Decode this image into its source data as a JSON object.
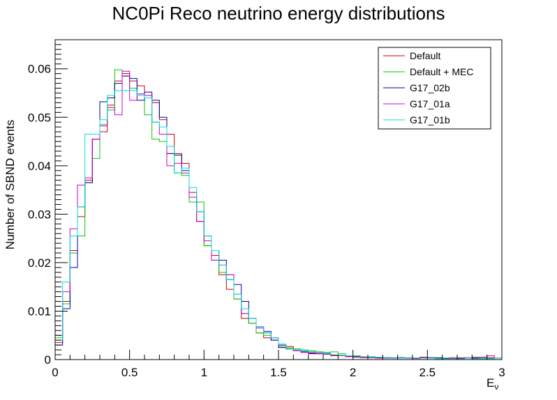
{
  "chart_data": {
    "type": "line",
    "title": "NC0Pi Reco neutrino energy distributions",
    "xlabel": "E",
    "xlabel_sub": "ν",
    "ylabel": "Number of SBND events",
    "xlim": [
      0,
      3
    ],
    "ylim": [
      0,
      0.066
    ],
    "bin_width": 0.05,
    "x_ticks": [
      0,
      0.5,
      1,
      1.5,
      2,
      2.5,
      3
    ],
    "x_tick_labels": [
      "0",
      "0.5",
      "1",
      "1.5",
      "2",
      "2.5",
      "3"
    ],
    "y_ticks": [
      0,
      0.01,
      0.02,
      0.03,
      0.04,
      0.05,
      0.06
    ],
    "y_tick_labels": [
      "0",
      "0.01",
      "0.02",
      "0.03",
      "0.04",
      "0.05",
      "0.06"
    ],
    "grid": false,
    "legend_position": "top-right",
    "series": [
      {
        "name": "Default",
        "color": "#cc0000",
        "values": [
          0.0035,
          0.012,
          0.0225,
          0.0295,
          0.037,
          0.0455,
          0.047,
          0.0525,
          0.0575,
          0.059,
          0.0575,
          0.0565,
          0.0545,
          0.053,
          0.0495,
          0.0465,
          0.0425,
          0.0405,
          0.0345,
          0.0285,
          0.0235,
          0.0215,
          0.0175,
          0.0145,
          0.0125,
          0.0085,
          0.0075,
          0.0055,
          0.0045,
          0.004,
          0.0025,
          0.0027,
          0.002,
          0.0015,
          0.0012,
          0.0013,
          0.0013,
          0.0008,
          0.0008,
          0.0006,
          0.0005,
          0.0004,
          0.0004,
          0.0003,
          0.0004,
          0.0003,
          0.0003,
          0.0003,
          0.0003,
          0.0005,
          0.0004,
          0.0003,
          0.0003,
          0.0004,
          0.0004,
          0.0003,
          0.0005,
          0.0003,
          0.0004,
          0.0003
        ]
      },
      {
        "name": "Default + MEC",
        "color": "#00cc00",
        "values": [
          0.0045,
          0.0115,
          0.022,
          0.0255,
          0.0365,
          0.0415,
          0.0485,
          0.0515,
          0.0598,
          0.0585,
          0.056,
          0.0548,
          0.0505,
          0.0455,
          0.045,
          0.0425,
          0.0385,
          0.038,
          0.0325,
          0.0325,
          0.0235,
          0.0205,
          0.018,
          0.0175,
          0.0125,
          0.0095,
          0.0075,
          0.0055,
          0.005,
          0.0045,
          0.0028,
          0.0024,
          0.0022,
          0.002,
          0.0018,
          0.0016,
          0.0015,
          0.0016,
          0.0012,
          0.0008,
          0.0008,
          0.0006,
          0.0006,
          0.0005,
          0.0004,
          0.0004,
          0.0003,
          0.0003,
          0.0003,
          0.0003,
          0.0003,
          0.0004,
          0.0003,
          0.0003,
          0.0003,
          0.0003,
          0.0004,
          0.0003,
          0.0003,
          0.0003
        ]
      },
      {
        "name": "G17_02b",
        "color": "#0000aa",
        "values": [
          0.003,
          0.0105,
          0.019,
          0.0315,
          0.0365,
          0.0455,
          0.0532,
          0.054,
          0.057,
          0.0585,
          0.058,
          0.0535,
          0.0552,
          0.0535,
          0.05,
          0.0425,
          0.0422,
          0.039,
          0.0335,
          0.0305,
          0.0255,
          0.0225,
          0.0205,
          0.0165,
          0.0155,
          0.012,
          0.0085,
          0.0068,
          0.0058,
          0.004,
          0.0025,
          0.0022,
          0.0018,
          0.0016,
          0.0013,
          0.0012,
          0.0012,
          0.001,
          0.0008,
          0.0007,
          0.0006,
          0.0005,
          0.0004,
          0.0004,
          0.0003,
          0.0003,
          0.0004,
          0.0003,
          0.0003,
          0.0003,
          0.0004,
          0.0003,
          0.0002,
          0.0003,
          0.0002,
          0.0003,
          0.0002,
          0.0002,
          0.0002,
          0.0003
        ]
      },
      {
        "name": "G17_01a",
        "color": "#cc00cc",
        "values": [
          0.005,
          0.014,
          0.027,
          0.036,
          0.0375,
          0.0455,
          0.0482,
          0.052,
          0.0505,
          0.0595,
          0.0535,
          0.0548,
          0.0545,
          0.049,
          0.0465,
          0.04,
          0.0405,
          0.0385,
          0.0335,
          0.0285,
          0.0245,
          0.0205,
          0.0195,
          0.0175,
          0.0135,
          0.0095,
          0.0085,
          0.0065,
          0.0055,
          0.0045,
          0.003,
          0.0022,
          0.0018,
          0.0015,
          0.0014,
          0.0012,
          0.0011,
          0.0009,
          0.0008,
          0.0007,
          0.0007,
          0.0005,
          0.0004,
          0.0004,
          0.0004,
          0.0003,
          0.0003,
          0.0003,
          0.0002,
          0.0003,
          0.0003,
          0.0002,
          0.0003,
          0.0002,
          0.0003,
          0.0004,
          0.0003,
          0.0005,
          0.0008,
          0.0003
        ]
      },
      {
        "name": "G17_01b",
        "color": "#00dddd",
        "values": [
          0.004,
          0.016,
          0.0255,
          0.0315,
          0.0465,
          0.0465,
          0.0495,
          0.0545,
          0.0555,
          0.0555,
          0.0555,
          0.0545,
          0.054,
          0.049,
          0.048,
          0.044,
          0.0385,
          0.0395,
          0.0355,
          0.0305,
          0.0255,
          0.0225,
          0.0195,
          0.0165,
          0.0135,
          0.0105,
          0.0085,
          0.0068,
          0.0055,
          0.0045,
          0.0032,
          0.0022,
          0.002,
          0.0018,
          0.0016,
          0.0015,
          0.0013,
          0.001,
          0.0009,
          0.0008,
          0.0007,
          0.0006,
          0.0005,
          0.0005,
          0.0004,
          0.0004,
          0.0003,
          0.0004,
          0.0003,
          0.0003,
          0.0003,
          0.0002,
          0.0003,
          0.0003,
          0.0003,
          0.0003,
          0.0003,
          0.0002,
          0.0002,
          0.0003
        ]
      }
    ]
  }
}
